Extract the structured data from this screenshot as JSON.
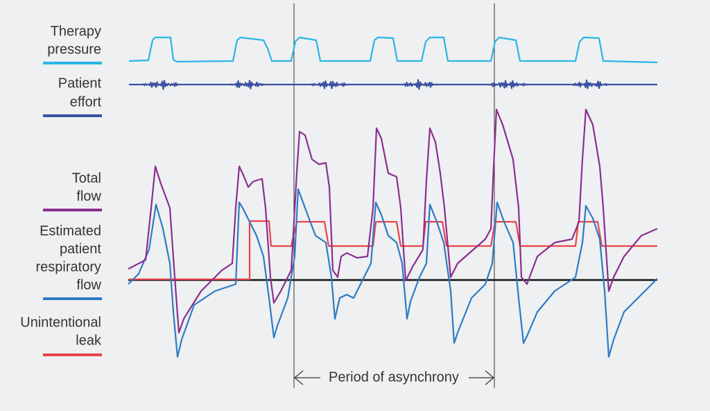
{
  "legend": [
    {
      "lines": [
        "Therapy",
        "pressure"
      ]
    },
    {
      "lines": [
        "Patient",
        "effort"
      ]
    },
    {
      "lines": [
        "Total",
        "flow"
      ]
    },
    {
      "lines": [
        "Estimated",
        "patient",
        "respiratory",
        "flow"
      ]
    },
    {
      "lines": [
        "Unintentional",
        "leak"
      ]
    }
  ],
  "annotation": "Period of asynchrony"
}
